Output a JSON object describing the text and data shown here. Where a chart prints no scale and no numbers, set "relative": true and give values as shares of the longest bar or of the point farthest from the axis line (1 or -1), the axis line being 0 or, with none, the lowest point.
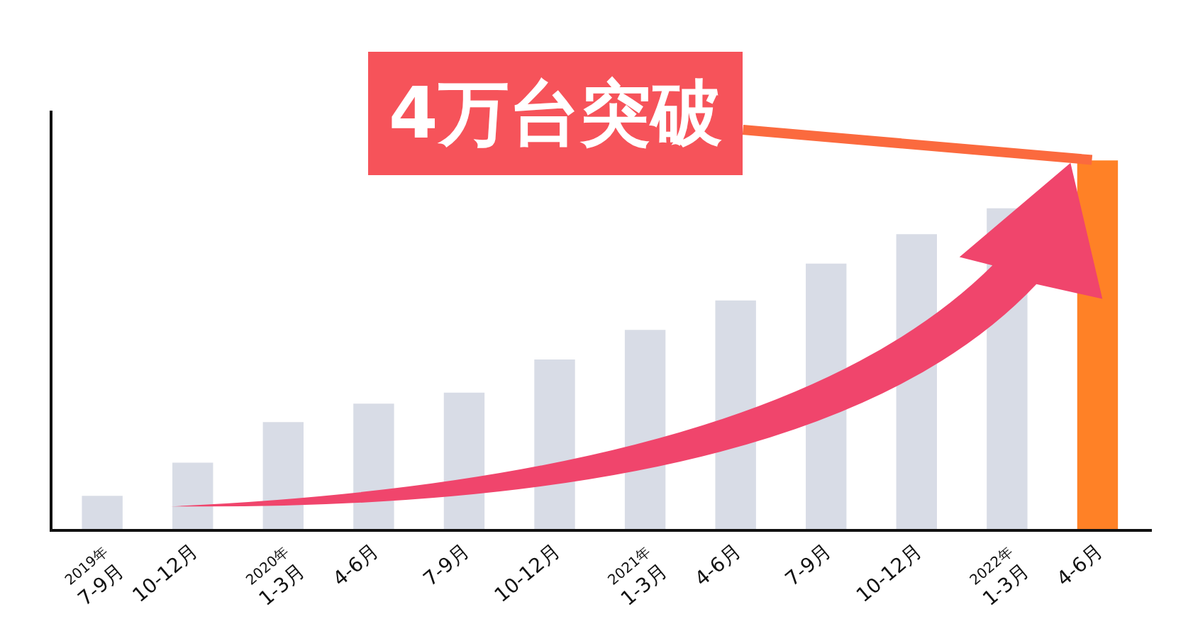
{
  "chart_data": {
    "type": "bar",
    "relative": true,
    "categories": [
      "2019年\n7-9月",
      "10-12月",
      "2020年\n1-3月",
      "4-6月",
      "7-9月",
      "10-12月",
      "2021年\n1-3月",
      "4-6月",
      "7-9月",
      "10-12月",
      "2022年\n1-3月",
      "4-6月"
    ],
    "values": [
      0.09,
      0.18,
      0.29,
      0.34,
      0.37,
      0.46,
      0.54,
      0.62,
      0.72,
      0.8,
      0.87,
      1.0
    ],
    "colors": [
      "#d8dce6",
      "#d8dce6",
      "#d8dce6",
      "#d8dce6",
      "#d8dce6",
      "#d8dce6",
      "#d8dce6",
      "#d8dce6",
      "#d8dce6",
      "#d8dce6",
      "#d8dce6",
      "#ff8126"
    ],
    "annotations": [
      "4万台突破"
    ],
    "legend": false
  }
}
